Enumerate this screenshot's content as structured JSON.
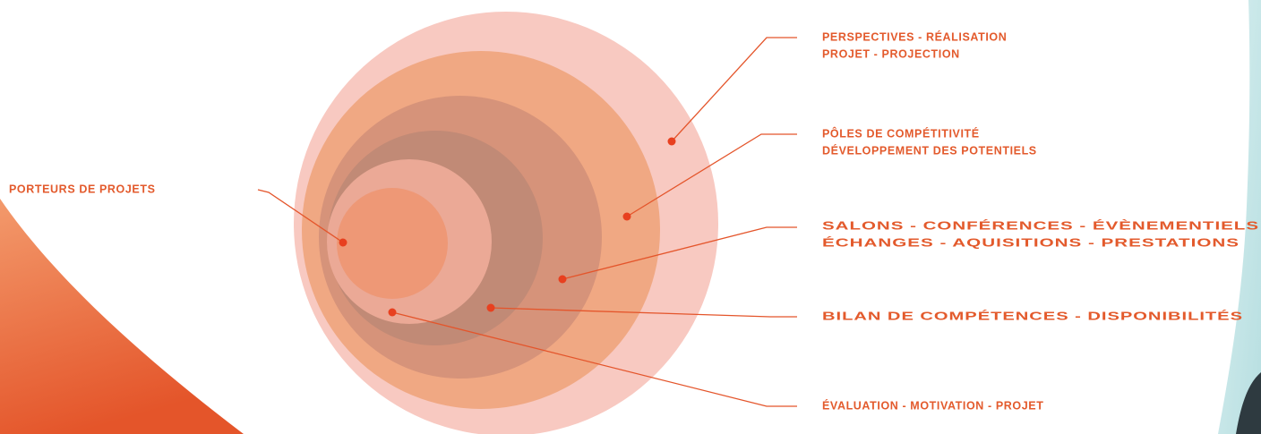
{
  "colors": {
    "accent": "#e8401f",
    "text": "#e35a2c",
    "leader": "#e4552b",
    "swoosh_light": "#f08a5d",
    "swoosh_dark": "#e45a2e",
    "corner_teal": "#8fd0d3",
    "corner_dark": "#2e3a40"
  },
  "circles": [
    {
      "level": 1,
      "color": "#f8c9c1"
    },
    {
      "level": 2,
      "color": "#f0a883"
    },
    {
      "level": 3,
      "color": "#d6937a"
    },
    {
      "level": 4,
      "color": "#c18a76"
    },
    {
      "level": 5,
      "color": "#eba996"
    },
    {
      "level": 6,
      "color": "#ee9876"
    }
  ],
  "labels": {
    "left": "PORTEURS DE PROJETS",
    "perspectives": {
      "line1": "PERSPECTIVES - RÉALISATION",
      "line2": "PROJET - PROJECTION"
    },
    "poles": {
      "line1": "PÔLES DE COMPÉTITIVITÉ",
      "line2": "DÉVELOPPEMENT DES POTENTIELS"
    },
    "salons": {
      "line1": "SALONS - CONFÉRENCES - ÉVÈNEMENTIELS",
      "line2": "ÉCHANGES - AQUISITIONS - PRESTATIONS"
    },
    "bilan": "BILAN DE COMPÉTENCES - DISPONIBILITÉS",
    "evaluation": "ÉVALUATION - MOTIVATION - PROJET"
  }
}
